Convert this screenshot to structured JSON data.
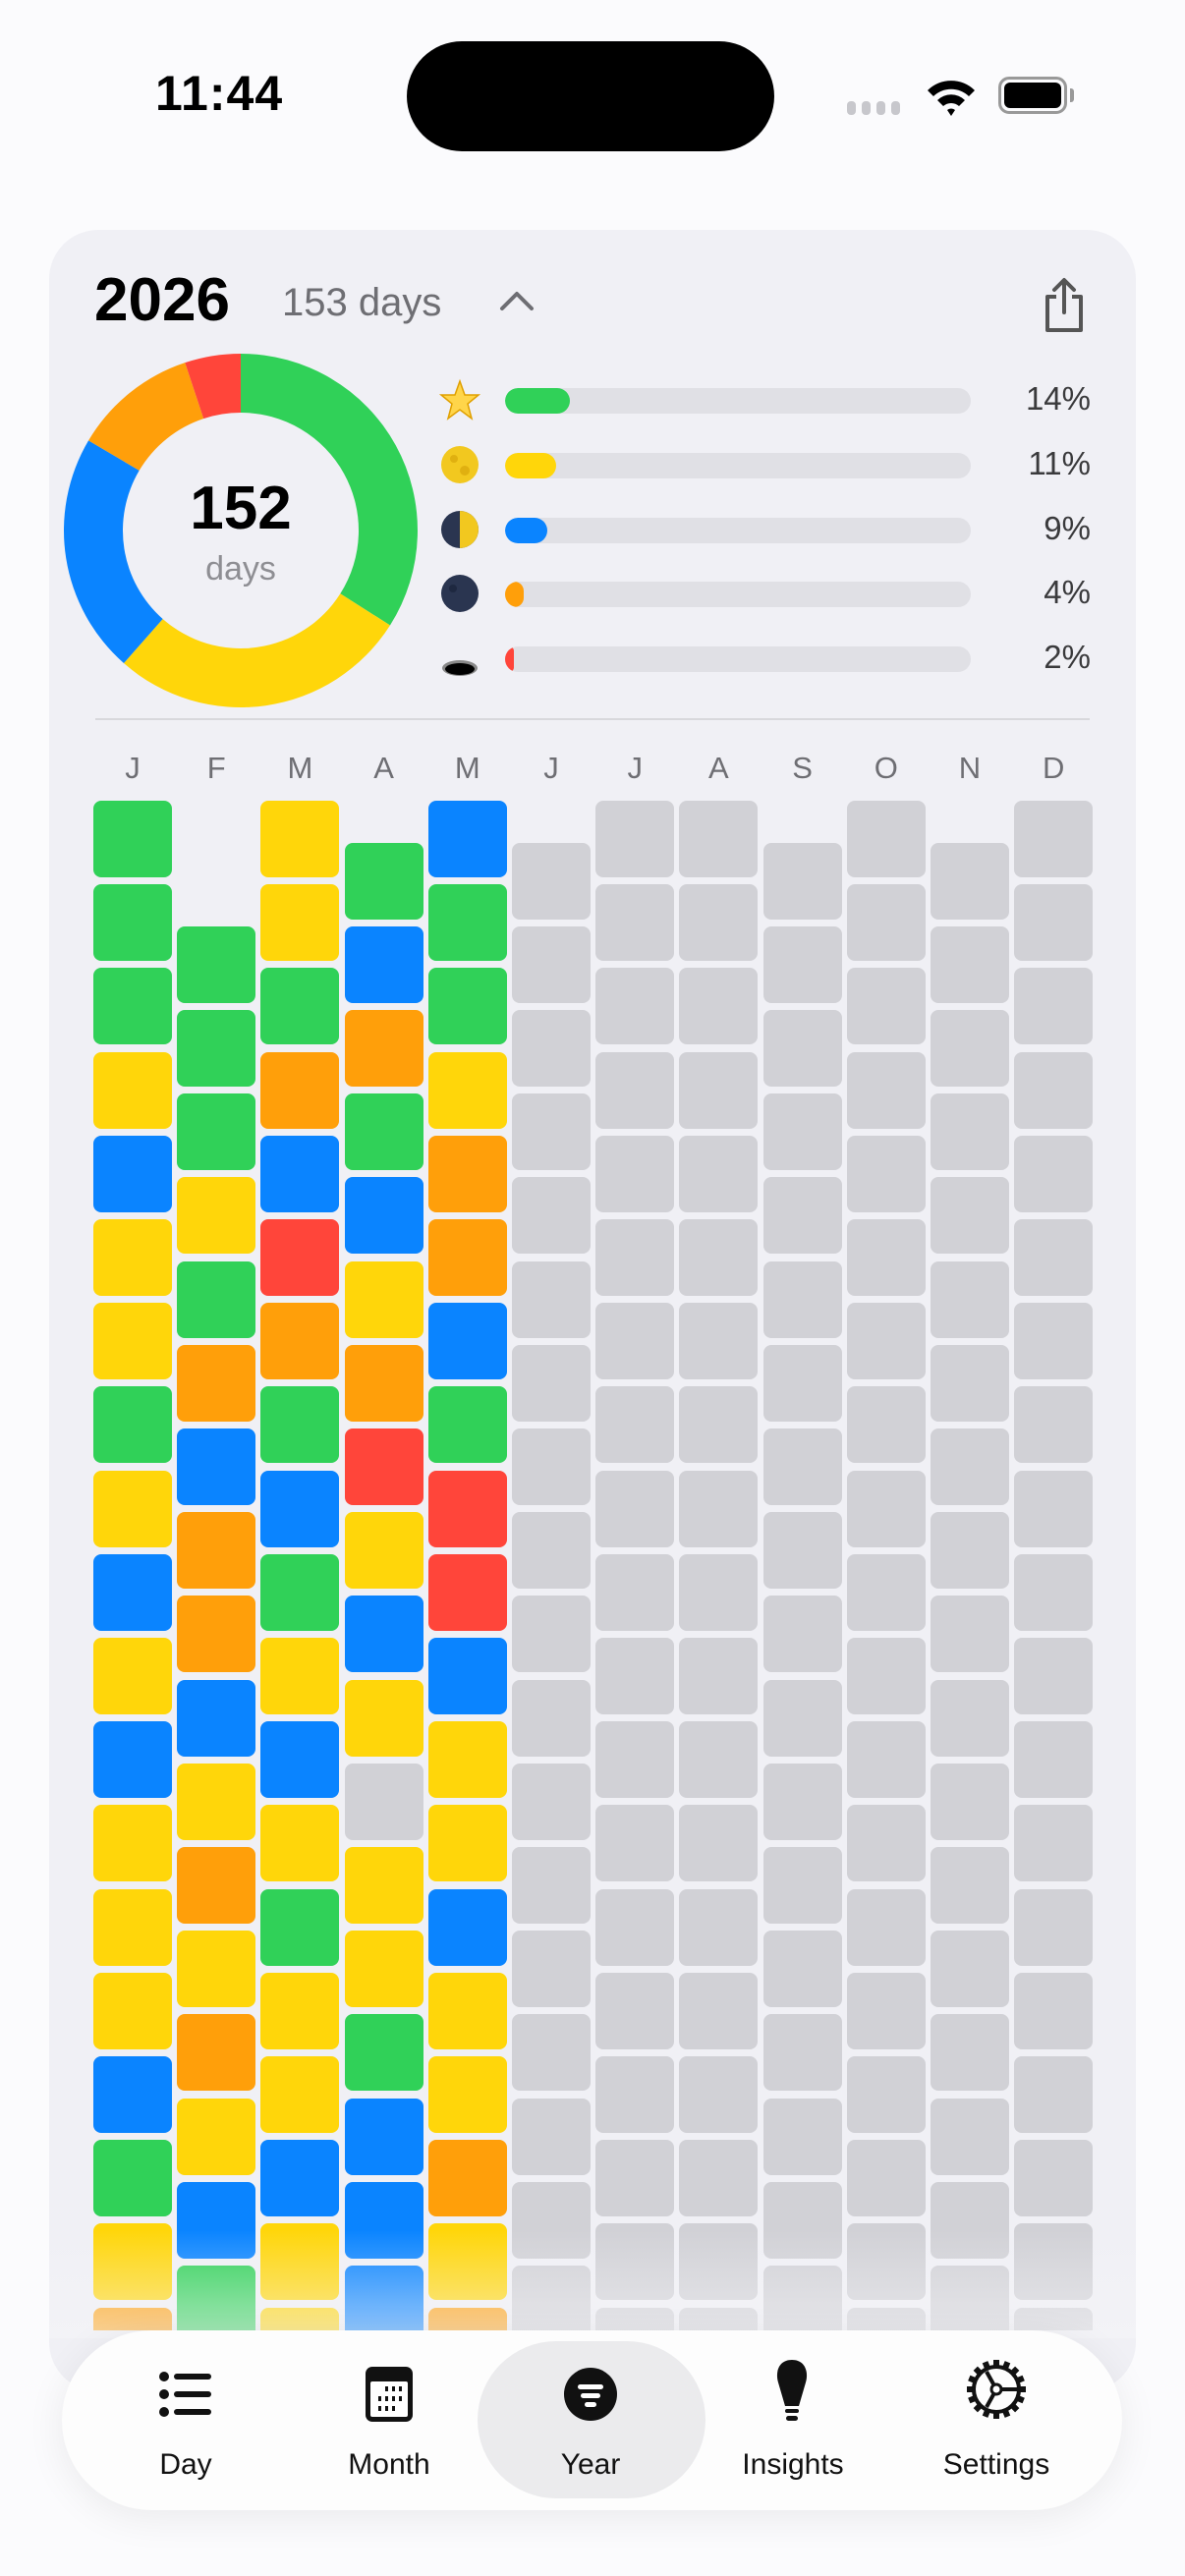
{
  "status_bar": {
    "time": "11:44"
  },
  "header": {
    "year": "2026",
    "day_count": "153 days",
    "chevron_icon": "chevron-up-icon",
    "share_icon": "share-icon"
  },
  "donut": {
    "value": "152",
    "label": "days",
    "fractions": [
      0.34,
      0.275,
      0.22,
      0.114,
      0.051
    ],
    "colors": [
      "#30d158",
      "#ffd60a",
      "#0a84ff",
      "#ff9f0a",
      "#ff453a"
    ]
  },
  "legend": [
    {
      "icon": "star-icon",
      "percent": "14%",
      "fill": 14,
      "color": "#30d158"
    },
    {
      "icon": "full-moon-icon",
      "percent": "11%",
      "fill": 11,
      "color": "#ffd60a"
    },
    {
      "icon": "half-moon-icon",
      "percent": "9%",
      "fill": 9,
      "color": "#0a84ff"
    },
    {
      "icon": "new-moon-icon",
      "percent": "4%",
      "fill": 4,
      "color": "#ff9f0a"
    },
    {
      "icon": "hole-icon",
      "percent": "2%",
      "fill": 2,
      "color": "#ff453a"
    }
  ],
  "mood_colors": {
    "g": "#30d158",
    "y": "#ffd60a",
    "b": "#0a84ff",
    "o": "#ff9f0a",
    "r": "#ff453a",
    "empty": "#d1d1d6"
  },
  "months": [
    {
      "label": "J",
      "days": 31,
      "moods": "gggybyygybybyyybgyo"
    },
    {
      "label": "F",
      "days": 28,
      "moods": "gggygoboobyoyoybg"
    },
    {
      "label": "M",
      "days": 31,
      "moods": "yygobrogbgybygyybyy"
    },
    {
      "label": "A",
      "days": 30,
      "moods": "gbogbyoryby yygbbbb"
    },
    {
      "label": "M",
      "days": 31,
      "moods": "bggyoobgrrbyybyyoyo"
    },
    {
      "label": "J",
      "days": 30,
      "moods": ""
    },
    {
      "label": "J",
      "days": 31,
      "moods": ""
    },
    {
      "label": "A",
      "days": 31,
      "moods": ""
    },
    {
      "label": "S",
      "days": 30,
      "moods": ""
    },
    {
      "label": "O",
      "days": 31,
      "moods": ""
    },
    {
      "label": "N",
      "days": 30,
      "moods": ""
    },
    {
      "label": "D",
      "days": 31,
      "moods": ""
    }
  ],
  "tabs": [
    {
      "label": "Day",
      "icon": "list-icon",
      "selected": false
    },
    {
      "label": "Month",
      "icon": "calendar-icon",
      "selected": false
    },
    {
      "label": "Year",
      "icon": "year-filter-icon",
      "selected": true
    },
    {
      "label": "Insights",
      "icon": "lightbulb-icon",
      "selected": false
    },
    {
      "label": "Settings",
      "icon": "gear-icon",
      "selected": false
    }
  ]
}
